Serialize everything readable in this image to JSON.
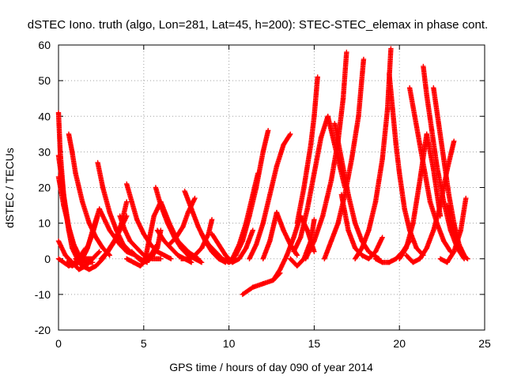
{
  "chart_data": {
    "type": "scatter",
    "title": "dSTEC Iono. truth (algo, Lon=281, Lat=45, h=200): STEC-STEC_elemax in phase cont.",
    "xlabel": "GPS time / hours of day 090 of year 2014",
    "ylabel": "dSTEC  / TECUs",
    "xlim": [
      0,
      25
    ],
    "ylim": [
      -20,
      60
    ],
    "xticks": [
      "0",
      "5",
      "10",
      "15",
      "20",
      "25"
    ],
    "yticks": [
      "-20",
      "-10",
      "0",
      "10",
      "20",
      "30",
      "40",
      "50",
      "60"
    ],
    "grid": true,
    "marker": "+",
    "color": "#ff0000",
    "series": [
      {
        "x": [
          0.0,
          0.1,
          0.3,
          0.6,
          0.9,
          1.2,
          1.5,
          1.8,
          2.0
        ],
        "y": [
          41,
          30,
          18,
          9,
          4,
          1,
          0,
          0,
          0
        ]
      },
      {
        "x": [
          0.0,
          0.2,
          0.4,
          0.6,
          0.8,
          1.1,
          1.5
        ],
        "y": [
          29,
          22,
          14,
          8,
          3,
          0,
          -1
        ]
      },
      {
        "x": [
          0.0,
          0.3,
          0.6,
          0.8,
          1.0,
          1.3,
          1.6,
          2.0
        ],
        "y": [
          23,
          15,
          9,
          5,
          2,
          0,
          -1,
          -1
        ]
      },
      {
        "x": [
          0.0,
          0.4,
          0.8,
          1.2,
          1.6,
          2.0,
          2.4
        ],
        "y": [
          5,
          1,
          -1,
          -3,
          -2,
          0,
          2
        ]
      },
      {
        "x": [
          0.0,
          0.3,
          0.6,
          1.0,
          1.3,
          1.6
        ],
        "y": [
          0,
          -1,
          -2,
          -1,
          1,
          3
        ]
      },
      {
        "x": [
          0.6,
          0.8,
          1.0,
          1.4,
          1.8,
          2.2,
          2.6,
          3.0
        ],
        "y": [
          35,
          30,
          24,
          16,
          10,
          6,
          3,
          1
        ]
      },
      {
        "x": [
          1.0,
          1.4,
          1.8,
          2.2,
          2.6,
          3.0,
          3.4,
          4.0
        ],
        "y": [
          0,
          -2,
          -3,
          -2,
          0,
          3,
          6,
          12
        ]
      },
      {
        "x": [
          0.5,
          0.8,
          1.2,
          1.6,
          2.0,
          2.3
        ],
        "y": [
          -1,
          -2,
          -1,
          2,
          7,
          12
        ]
      },
      {
        "x": [
          1.4,
          1.7,
          2.0,
          2.4,
          3.0,
          3.6,
          4.0,
          4.5
        ],
        "y": [
          0,
          3,
          8,
          14,
          8,
          4,
          2,
          1
        ]
      },
      {
        "x": [
          2.3,
          2.6,
          3.0,
          3.4,
          3.8,
          4.2,
          4.8,
          5.2
        ],
        "y": [
          27,
          20,
          13,
          8,
          4,
          2,
          0,
          -1
        ]
      },
      {
        "x": [
          2.5,
          2.9,
          3.3,
          3.7,
          4.0
        ],
        "y": [
          0,
          2,
          5,
          10,
          16
        ]
      },
      {
        "x": [
          3.6,
          3.9,
          4.2,
          4.6,
          5.0,
          5.5,
          6.0
        ],
        "y": [
          12,
          8,
          5,
          3,
          1,
          0,
          0
        ]
      },
      {
        "x": [
          4.0,
          4.3,
          4.6,
          5.0,
          5.4,
          5.8,
          6.2,
          6.6
        ],
        "y": [
          21,
          16,
          11,
          7,
          4,
          2,
          1,
          0
        ]
      },
      {
        "x": [
          4.0,
          4.4,
          4.8,
          5.0,
          5.4,
          5.8
        ],
        "y": [
          0,
          -1,
          -2,
          -1,
          1,
          4
        ]
      },
      {
        "x": [
          4.3,
          4.7,
          5.0,
          5.4,
          5.8,
          6.0
        ],
        "y": [
          2,
          0,
          -1,
          0,
          3,
          8
        ]
      },
      {
        "x": [
          5.1,
          5.3,
          5.6,
          6.0,
          6.5,
          7.0,
          7.6,
          8.2
        ],
        "y": [
          0,
          5,
          12,
          16,
          10,
          5,
          2,
          0
        ]
      },
      {
        "x": [
          5.7,
          6.0,
          6.4,
          6.8,
          7.2,
          7.6,
          8.0,
          8.4
        ],
        "y": [
          20,
          15,
          10,
          6,
          3,
          1,
          0,
          -1
        ]
      },
      {
        "x": [
          5.8,
          6.2,
          6.6,
          7.0,
          7.4,
          7.8
        ],
        "y": [
          8,
          5,
          3,
          1,
          0,
          -1
        ]
      },
      {
        "x": [
          6.5,
          6.9,
          7.3,
          7.6,
          8.0
        ],
        "y": [
          4,
          6,
          9,
          13,
          17
        ]
      },
      {
        "x": [
          7.4,
          7.8,
          8.2,
          8.6,
          9.0,
          9.4,
          9.8
        ],
        "y": [
          19,
          14,
          9,
          5,
          2,
          0,
          -1
        ]
      },
      {
        "x": [
          7.2,
          7.6,
          8.0,
          8.4,
          8.8,
          9.0
        ],
        "y": [
          0,
          0,
          1,
          3,
          7,
          11
        ]
      },
      {
        "x": [
          8.4,
          8.8,
          9.2,
          9.6,
          10.0,
          10.4
        ],
        "y": [
          7,
          4,
          2,
          0,
          -1,
          0
        ]
      },
      {
        "x": [
          9.0,
          9.4,
          9.8,
          10.2,
          10.6,
          11.0,
          11.4
        ],
        "y": [
          7,
          4,
          1,
          -1,
          0,
          3,
          8
        ]
      },
      {
        "x": [
          9.6,
          10.0,
          10.4,
          10.8,
          11.2,
          11.6,
          12.0,
          12.3
        ],
        "y": [
          0,
          -1,
          1,
          5,
          12,
          20,
          30,
          36
        ]
      },
      {
        "x": [
          10.2,
          10.6,
          11.0,
          11.4,
          11.7
        ],
        "y": [
          0,
          4,
          10,
          18,
          24
        ]
      },
      {
        "x": [
          10.8,
          11.4,
          12.0,
          12.6,
          13.0
        ],
        "y": [
          -10,
          -8,
          -7,
          -6,
          -4
        ]
      },
      {
        "x": [
          11.2,
          11.6,
          12.0,
          12.4,
          12.8,
          13.2,
          13.6
        ],
        "y": [
          0,
          4,
          10,
          18,
          26,
          32,
          35
        ]
      },
      {
        "x": [
          12.0,
          12.4,
          12.8,
          13.2,
          13.6,
          14.0
        ],
        "y": [
          0,
          5,
          13,
          8,
          4,
          1
        ]
      },
      {
        "x": [
          12.6,
          13.0,
          13.4,
          13.8,
          14.2,
          14.6,
          15.0
        ],
        "y": [
          -6,
          -3,
          1,
          6,
          12,
          8,
          2
        ]
      },
      {
        "x": [
          13.6,
          14.0,
          14.4,
          14.8,
          15.0
        ],
        "y": [
          0,
          -2,
          0,
          5,
          11
        ]
      },
      {
        "x": [
          13.8,
          14.2,
          14.6,
          15.0,
          15.4,
          15.8,
          16.2,
          16.8
        ],
        "y": [
          2,
          6,
          14,
          24,
          34,
          40,
          32,
          20
        ]
      },
      {
        "x": [
          14.0,
          14.4,
          14.8,
          15.0,
          15.2
        ],
        "y": [
          10,
          20,
          32,
          40,
          51
        ]
      },
      {
        "x": [
          14.5,
          15.0,
          15.5,
          16.0,
          16.4,
          16.7,
          16.9
        ],
        "y": [
          0,
          5,
          12,
          22,
          33,
          45,
          58
        ]
      },
      {
        "x": [
          15.6,
          16.0,
          16.4,
          16.8,
          17.2,
          17.6,
          17.9
        ],
        "y": [
          0,
          5,
          10,
          18,
          28,
          40,
          56
        ]
      },
      {
        "x": [
          16.2,
          16.6,
          17.0,
          17.4,
          17.8,
          18.2,
          18.8
        ],
        "y": [
          38,
          28,
          18,
          10,
          5,
          2,
          0
        ]
      },
      {
        "x": [
          16.6,
          17.0,
          17.4,
          17.8,
          18.2,
          18.6,
          19.0
        ],
        "y": [
          18,
          8,
          3,
          1,
          0,
          2,
          6
        ]
      },
      {
        "x": [
          17.4,
          17.8,
          18.2,
          18.6,
          19.0,
          19.3,
          19.5
        ],
        "y": [
          0,
          3,
          8,
          16,
          28,
          42,
          59
        ]
      },
      {
        "x": [
          19.4,
          19.6,
          19.8,
          20.0,
          20.3,
          20.6,
          21.0,
          21.4
        ],
        "y": [
          52,
          42,
          32,
          24,
          14,
          8,
          3,
          1
        ]
      },
      {
        "x": [
          18.6,
          19.0,
          19.4,
          19.8,
          20.2,
          20.6
        ],
        "y": [
          0,
          -1,
          -1,
          0,
          2,
          5
        ]
      },
      {
        "x": [
          20.0,
          20.4,
          20.8,
          21.2,
          21.6,
          22.0,
          22.4
        ],
        "y": [
          0,
          3,
          10,
          22,
          35,
          25,
          12
        ]
      },
      {
        "x": [
          20.6,
          20.9,
          21.2,
          21.5,
          21.8,
          22.2,
          22.6,
          23.0
        ],
        "y": [
          48,
          40,
          32,
          24,
          16,
          10,
          5,
          2
        ]
      },
      {
        "x": [
          21.4,
          21.6,
          21.9,
          22.2,
          22.6,
          23.0,
          23.4,
          23.8
        ],
        "y": [
          54,
          46,
          36,
          26,
          16,
          8,
          3,
          0
        ]
      },
      {
        "x": [
          20.4,
          20.8,
          21.2,
          21.6,
          22.0,
          22.4,
          22.8,
          23.2
        ],
        "y": [
          1,
          -1,
          0,
          3,
          8,
          15,
          25,
          33
        ]
      },
      {
        "x": [
          22.0,
          22.3,
          22.6,
          22.9,
          23.2,
          23.5,
          23.8
        ],
        "y": [
          48,
          38,
          28,
          18,
          10,
          4,
          1
        ]
      },
      {
        "x": [
          22.4,
          22.8,
          23.2,
          23.6,
          23.9
        ],
        "y": [
          0,
          -1,
          2,
          8,
          17
        ]
      },
      {
        "x": [
          22.8,
          23.1,
          23.4,
          23.7,
          24.0
        ],
        "y": [
          15,
          9,
          4,
          1,
          0
        ]
      }
    ]
  }
}
